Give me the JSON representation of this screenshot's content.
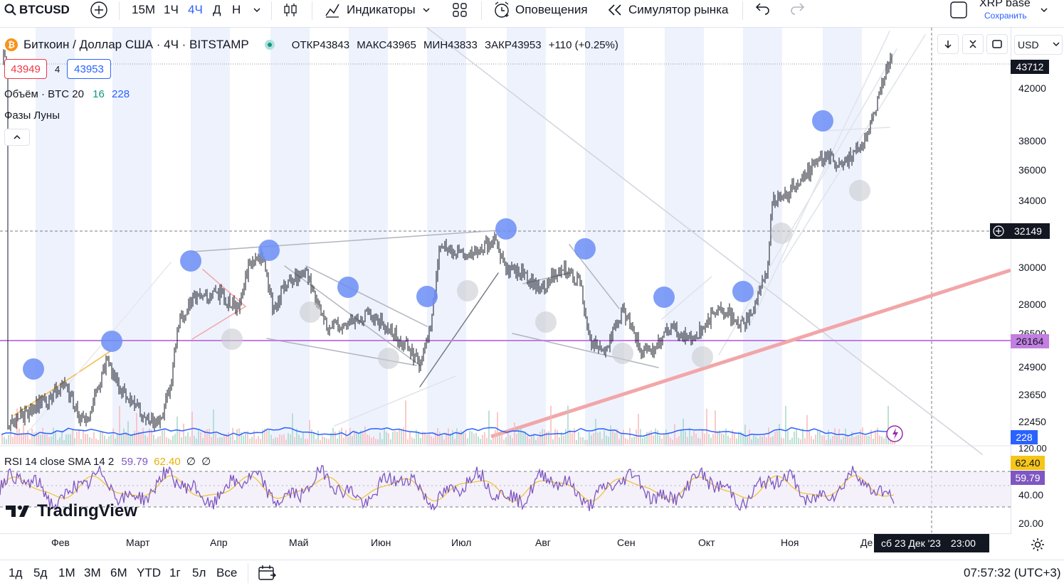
{
  "toolbar": {
    "symbol": "BTCUSD",
    "intervals": [
      "15М",
      "1Ч",
      "4Ч",
      "Д",
      "Н"
    ],
    "active_interval": "4Ч",
    "indicators_label": "Индикаторы",
    "alerts_label": "Оповещения",
    "replay_label": "Симулятор рынка",
    "layout_name": "XRP base",
    "save_label": "Сохранить"
  },
  "legend": {
    "title": "Биткоин / Доллар США · 4Ч · BITSTAMP",
    "open_label": "ОТКР",
    "open": "43843",
    "high_label": "МАКС",
    "high": "43965",
    "low_label": "МИН",
    "low": "43833",
    "close_label": "ЗАКР",
    "close": "43953",
    "change": "+110 (+0.25%)",
    "bid": "43949",
    "spread": "4",
    "ask": "43953",
    "volume_label": "Объём · BTC 20",
    "volume_a": "16",
    "volume_b": "228",
    "moon_label": "Фазы Луны"
  },
  "rsi": {
    "label": "RSI 14 close SMA 14 2",
    "value1": "59.79",
    "value2": "62.40",
    "value3": "∅",
    "value4": "∅"
  },
  "price_axis": {
    "currency": "USD",
    "labels": [
      "42000",
      "38000",
      "36000",
      "34000",
      "30000",
      "28000",
      "26500",
      "24900",
      "23650",
      "22450"
    ],
    "current_price": "43712",
    "crosshair_price": "32149",
    "hline_price": "26164",
    "volume_badge": "228"
  },
  "rsi_axis": {
    "labels": [
      "120.00",
      "40.00",
      "20.00"
    ],
    "badge_sma": "62.40",
    "badge_rsi": "59.79"
  },
  "time_axis": {
    "months": [
      "Фев",
      "Март",
      "Апр",
      "Май",
      "Июн",
      "Июл",
      "Авг",
      "Сен",
      "Окт",
      "Ноя",
      "Де"
    ],
    "crosshair_date": "сб 23 Дек '23",
    "crosshair_time": "23:00"
  },
  "watermark": "TradingView",
  "bottom": {
    "ranges": [
      "1д",
      "5д",
      "1М",
      "3М",
      "6М",
      "YTD",
      "1г",
      "5л",
      "Все"
    ],
    "clock": "07:57:32 (UTC+3)"
  },
  "colors": {
    "accent": "#2962ff",
    "bid": "#f23645",
    "hline": "#c27ee0",
    "rsi": "#7e57c2",
    "rsi_sma": "#f0c53a",
    "moon": "#6b8ef5"
  }
}
